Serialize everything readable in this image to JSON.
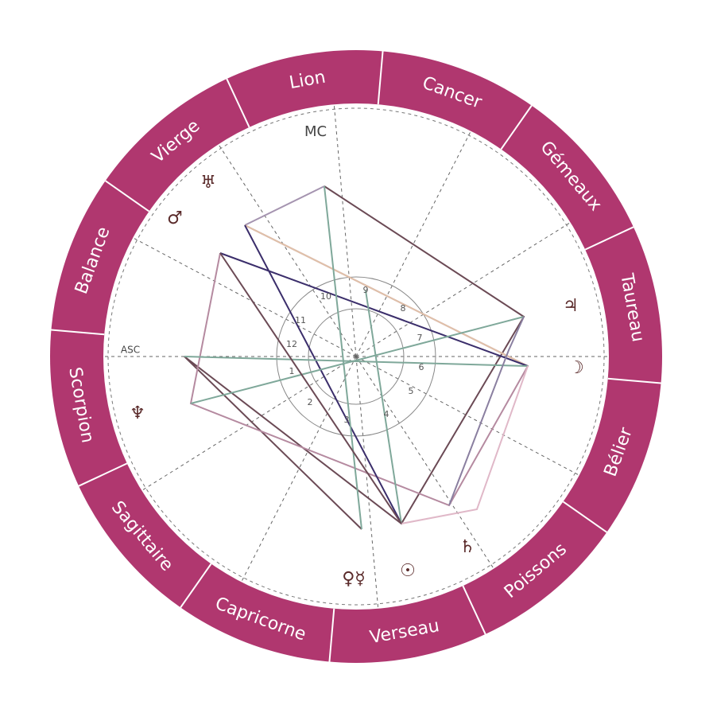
{
  "signs": [
    "Lion",
    "Cancer",
    "Gémeaux",
    "Taureau",
    "Bélier",
    "Poissons",
    "Verseau",
    "Capricorne",
    "Sagittaire",
    "Scorpion",
    "Balance",
    "Vierge"
  ],
  "angles": {
    "asc": "ASC",
    "mc": "MC"
  },
  "houses": [
    "1",
    "2",
    "3",
    "4",
    "5",
    "6",
    "7",
    "8",
    "9",
    "10",
    "11",
    "12"
  ],
  "planets": [
    "☉",
    "♀☿",
    "♄",
    "☽",
    "♃",
    "♅",
    "♂",
    "♆"
  ]
}
